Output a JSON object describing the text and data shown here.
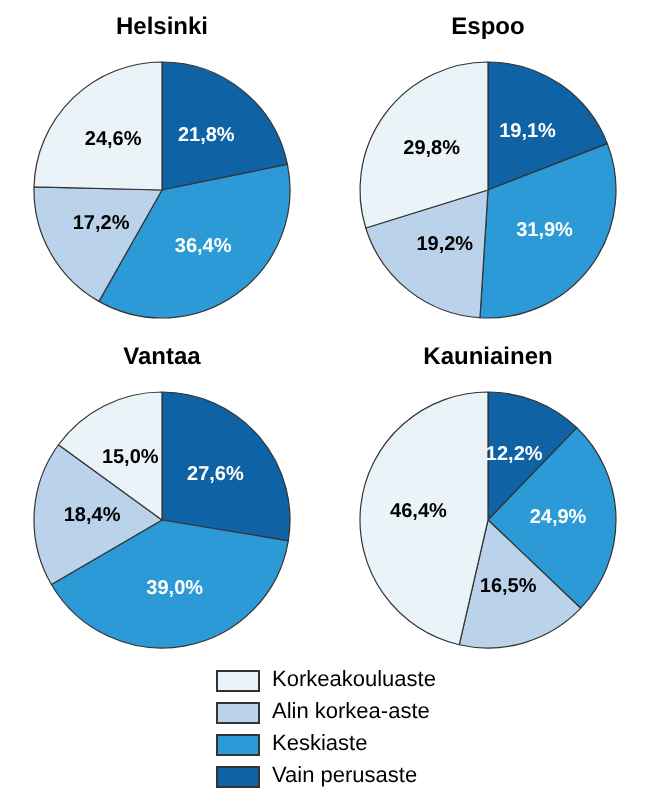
{
  "chart_data": [
    {
      "type": "pie",
      "title": "Helsinki",
      "categories": [
        "Vain perusaste",
        "Keskiaste",
        "Alin korkea-aste",
        "Korkeakouluaste"
      ],
      "values": [
        21.8,
        36.4,
        17.2,
        24.6
      ],
      "value_labels": [
        "21,8%",
        "36,4%",
        "17,2%",
        "24,6%"
      ],
      "colors": [
        "#0f62a4",
        "#2b9ad6",
        "#bad3ea",
        "#eaf3f8"
      ],
      "legend": "bottom"
    },
    {
      "type": "pie",
      "title": "Espoo",
      "categories": [
        null,
        null,
        null,
        null
      ],
      "values": [
        19.1,
        31.9,
        19.2,
        29.8
      ],
      "value_labels": [
        "19,1%",
        "31,9%",
        "19,2%",
        "29,8%"
      ],
      "colors": [
        "#0f62a4",
        "#2b9ad6",
        "#bad3ea",
        "#eaf3f8"
      ]
    },
    {
      "type": "pie",
      "title": "Vantaa",
      "categories": [
        null,
        null,
        null,
        null
      ],
      "values": [
        27.6,
        39.0,
        18.4,
        15.0
      ],
      "value_labels": [
        "27,6%",
        "39,0%",
        "18,4%",
        "15,0%"
      ],
      "colors": [
        "#0f62a4",
        "#2b9ad6",
        "#bad3ea",
        "#eaf3f8"
      ]
    },
    {
      "type": "pie",
      "title": "Kauniainen",
      "categories": [
        null,
        null,
        null,
        null
      ],
      "values": [
        12.2,
        24.9,
        16.5,
        46.4
      ],
      "value_labels": [
        "12,2%",
        "24,9%",
        "16,5%",
        "46,4%"
      ],
      "colors": [
        "#0f62a4",
        "#2b9ad6",
        "#bad3ea",
        "#eaf3f8"
      ]
    }
  ]
}
